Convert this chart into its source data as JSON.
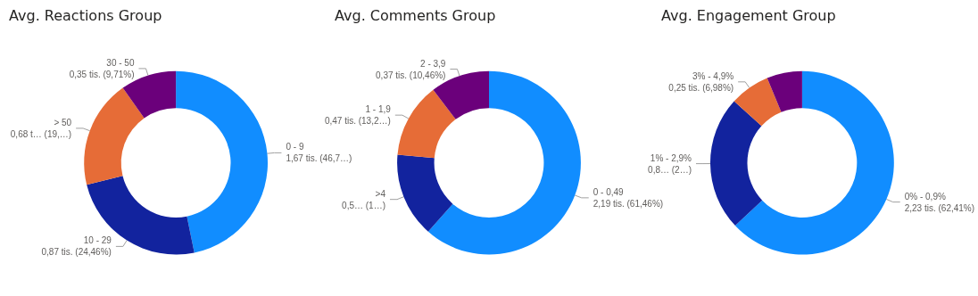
{
  "chart_data": [
    {
      "type": "donut",
      "title": "Avg. Reactions Group",
      "categories": [
        "0 - 9",
        "10 - 29",
        "> 50",
        "30 - 50"
      ],
      "values": [
        1.67,
        0.87,
        0.68,
        0.35
      ],
      "colors": [
        "#118dff",
        "#12239e",
        "#e66c37",
        "#6b007b"
      ],
      "value_labels": [
        "1,67 tis. (46,7…)",
        "0,87 tis. (24,46%)",
        "0,68 t… (19,…)",
        "0,35 tis. (9,71%)"
      ]
    },
    {
      "type": "donut",
      "title": "Avg. Comments Group",
      "categories": [
        "0 - 0,49",
        ">4",
        "1 - 1,9",
        "2 - 3,9"
      ],
      "values": [
        2.19,
        0.53,
        0.47,
        0.37
      ],
      "colors": [
        "#118dff",
        "#12239e",
        "#e66c37",
        "#6b007b"
      ],
      "value_labels": [
        "2,19 tis. (61,46%)",
        "0,5… (1…)",
        "0,47 tis. (13,2…)",
        "0,37 tis. (10,46%)"
      ]
    },
    {
      "type": "donut",
      "title": "Avg. Engagement Group",
      "categories": [
        "0% - 0,9%",
        "1% - 2,9%",
        "3% - 4,9%",
        null
      ],
      "values": [
        2.23,
        0.84,
        0.25,
        0.22
      ],
      "colors": [
        "#118dff",
        "#12239e",
        "#e66c37",
        "#6b007b"
      ],
      "value_labels": [
        "2,23 tis. (62,41%)",
        "0,8… (2…)",
        "0,25 tis. (6,98%)",
        null
      ]
    }
  ]
}
